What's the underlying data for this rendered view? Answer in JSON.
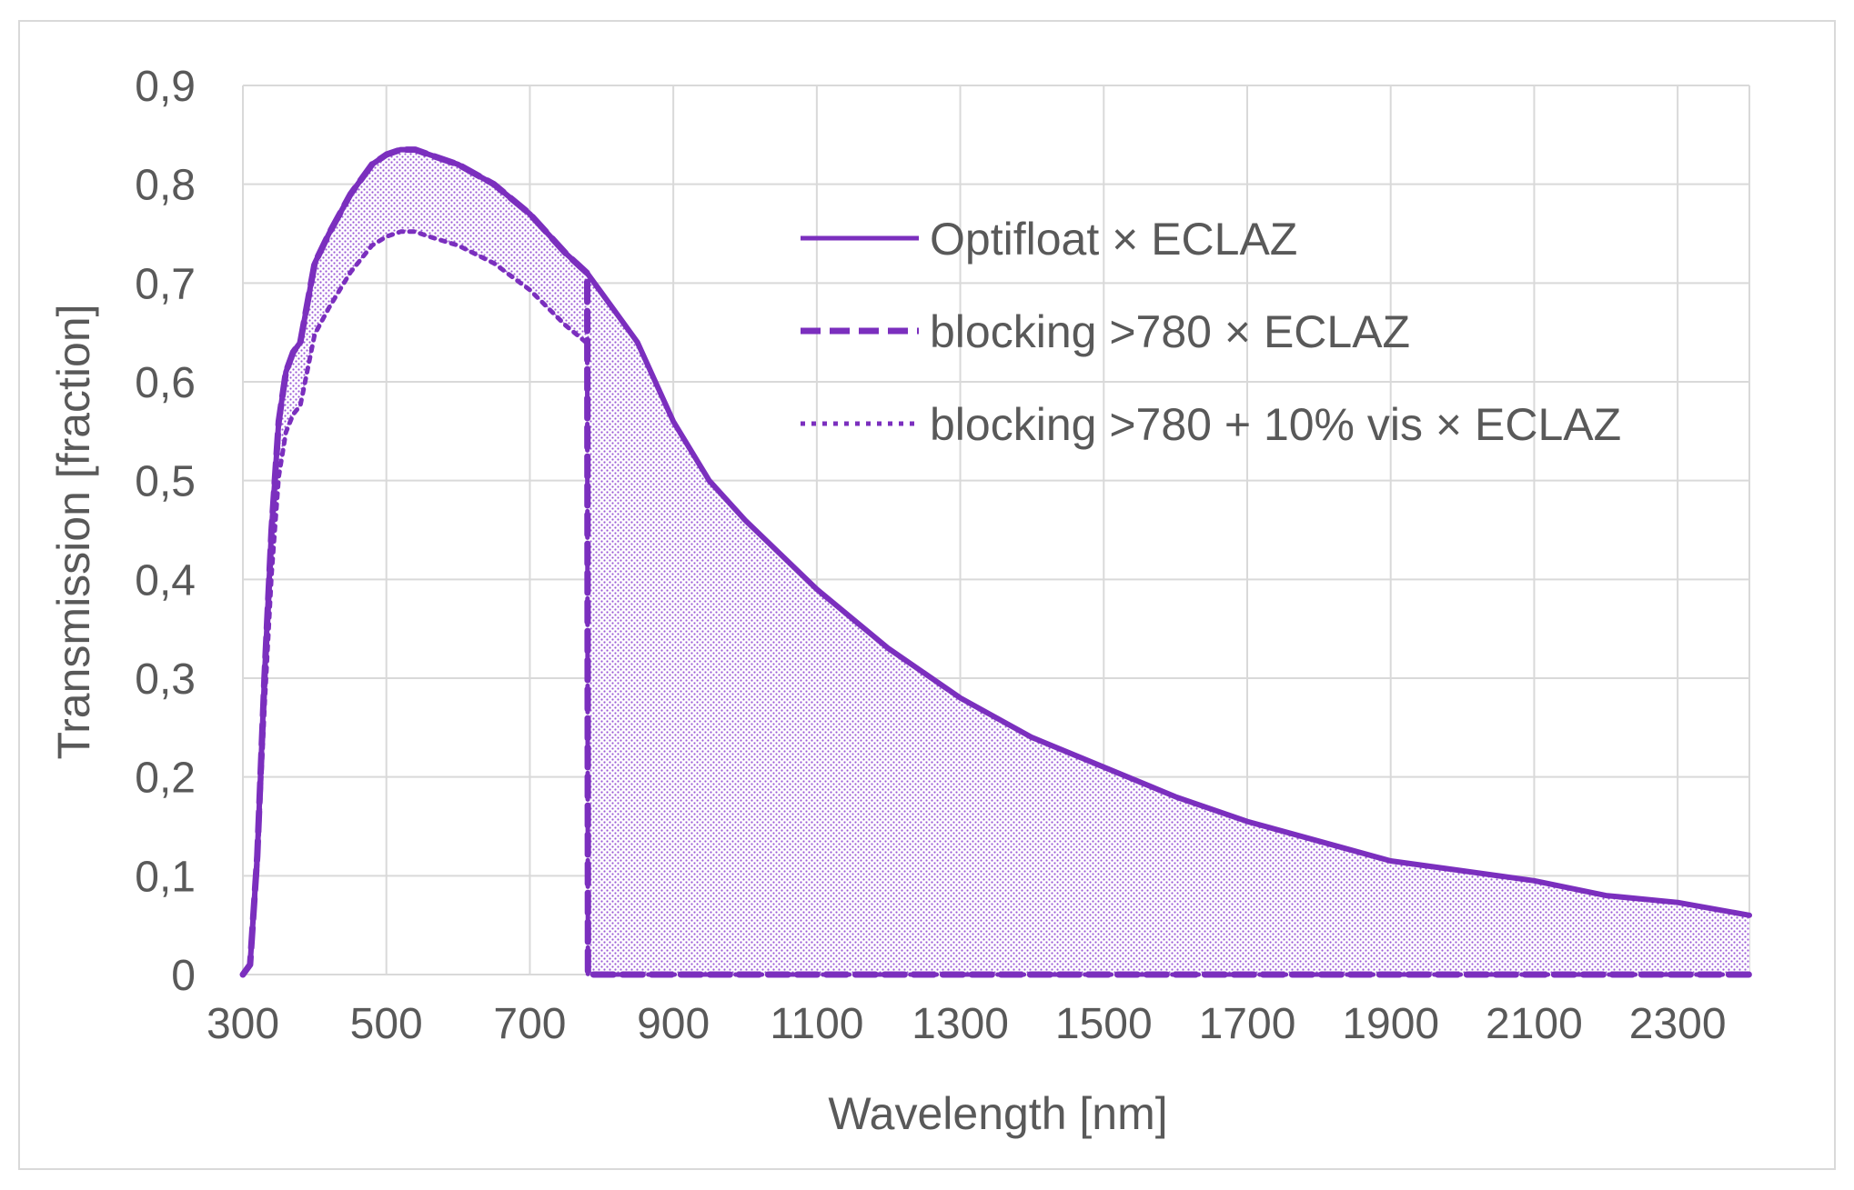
{
  "chart_data": {
    "type": "line",
    "title": "",
    "xlabel": "Wavelength [nm]",
    "ylabel": "Transmission [fraction]",
    "xlim": [
      300,
      2400
    ],
    "ylim": [
      0,
      0.9
    ],
    "x_ticks": [
      300,
      500,
      700,
      900,
      1100,
      1300,
      1500,
      1700,
      1900,
      2100,
      2300
    ],
    "x_tick_labels": [
      "300",
      "500",
      "700",
      "900",
      "1100",
      "1300",
      "1500",
      "1700",
      "1900",
      "2100",
      "2300"
    ],
    "y_ticks": [
      0,
      0.1,
      0.2,
      0.3,
      0.4,
      0.5,
      0.6,
      0.7,
      0.8,
      0.9
    ],
    "y_tick_labels": [
      "0",
      "0,1",
      "0,2",
      "0,3",
      "0,4",
      "0,5",
      "0,6",
      "0,7",
      "0,8",
      "0,9"
    ],
    "grid": true,
    "legend_position": "top-right",
    "series": [
      {
        "name": "Optifloat × ECLAZ",
        "style": "solid",
        "color": "#7b2fbe",
        "x": [
          300,
          310,
          320,
          330,
          340,
          350,
          360,
          370,
          380,
          400,
          420,
          450,
          480,
          500,
          520,
          540,
          560,
          600,
          650,
          700,
          750,
          780,
          800,
          820,
          850,
          900,
          950,
          1000,
          1100,
          1200,
          1300,
          1400,
          1500,
          1600,
          1700,
          1800,
          1900,
          2000,
          2100,
          2200,
          2300,
          2400
        ],
        "y": [
          0,
          0.01,
          0.12,
          0.3,
          0.45,
          0.56,
          0.61,
          0.63,
          0.64,
          0.72,
          0.75,
          0.79,
          0.82,
          0.83,
          0.835,
          0.835,
          0.83,
          0.82,
          0.8,
          0.77,
          0.73,
          0.71,
          0.69,
          0.67,
          0.64,
          0.56,
          0.5,
          0.46,
          0.39,
          0.33,
          0.28,
          0.24,
          0.21,
          0.18,
          0.155,
          0.135,
          0.115,
          0.105,
          0.095,
          0.08,
          0.073,
          0.06
        ]
      },
      {
        "name": "blocking >780 × ECLAZ",
        "style": "dashed",
        "color": "#7b2fbe",
        "x": [
          300,
          310,
          320,
          330,
          340,
          350,
          360,
          370,
          380,
          400,
          420,
          450,
          480,
          500,
          520,
          540,
          560,
          600,
          650,
          700,
          750,
          780,
          781,
          2400
        ],
        "y": [
          0,
          0.01,
          0.12,
          0.3,
          0.45,
          0.56,
          0.61,
          0.63,
          0.64,
          0.72,
          0.75,
          0.79,
          0.82,
          0.83,
          0.835,
          0.835,
          0.83,
          0.82,
          0.8,
          0.77,
          0.73,
          0.71,
          0,
          0
        ]
      },
      {
        "name": "blocking >780 + 10% vis × ECLAZ",
        "style": "dotted",
        "color": "#7b2fbe",
        "x": [
          300,
          310,
          320,
          330,
          340,
          350,
          360,
          370,
          380,
          400,
          420,
          450,
          480,
          500,
          520,
          540,
          560,
          600,
          650,
          700,
          750,
          780,
          781,
          2400
        ],
        "y": [
          0,
          0.009,
          0.108,
          0.27,
          0.405,
          0.504,
          0.549,
          0.567,
          0.576,
          0.648,
          0.675,
          0.711,
          0.738,
          0.747,
          0.752,
          0.752,
          0.747,
          0.738,
          0.72,
          0.693,
          0.657,
          0.639,
          0,
          0
        ]
      }
    ]
  }
}
